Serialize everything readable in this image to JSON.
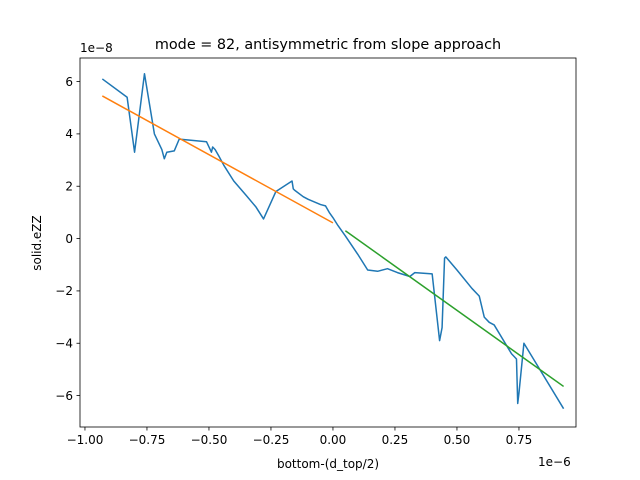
{
  "chart_data": {
    "type": "line",
    "title": "mode = 82, antisymmetric from slope approach",
    "xlabel": "bottom-(d_top/2)",
    "ylabel": "solid.eZZ",
    "x_offset_text": "1e−6",
    "y_offset_text": "1e−8",
    "xlim": [
      -1.02e-06,
      9.8e-07
    ],
    "ylim": [
      -7.2e-08,
      6.9e-08
    ],
    "x_ticks": [
      -1e-06,
      -7.5e-07,
      -5e-07,
      -2.5e-07,
      0.0,
      2.5e-07,
      5e-07,
      7.5e-07
    ],
    "x_tick_labels": [
      "−1.00",
      "−0.75",
      "−0.50",
      "−0.25",
      "0.00",
      "0.25",
      "0.50",
      "0.75"
    ],
    "y_ticks": [
      -6e-08,
      -4e-08,
      -2e-08,
      0,
      2e-08,
      4e-08,
      6e-08
    ],
    "y_tick_labels": [
      "−6",
      "−4",
      "−2",
      "0",
      "2",
      "4",
      "6"
    ],
    "series": [
      {
        "color": "#1f77b4",
        "x": [
          -9.3e-07,
          -8.3e-07,
          -8e-07,
          -7.6e-07,
          -7.2e-07,
          -6.9e-07,
          -6.8e-07,
          -6.7e-07,
          -6.4e-07,
          -6.2e-07,
          -5.1e-07,
          -4.9e-07,
          -4.85e-07,
          -4.75e-07,
          -4.6e-07,
          -4.4e-07,
          -4e-07,
          -3.5e-07,
          -3.1e-07,
          -2.8e-07,
          -2.3e-07,
          -1.65e-07,
          -1.6e-07,
          -1.55e-07,
          -1.2e-07,
          -1e-07,
          -5e-08,
          -3e-08,
          -1.5e-08,
          0.0,
          2e-08,
          5e-08,
          1e-07,
          1.4e-07,
          1.8e-07,
          2.2e-07,
          2.6e-07,
          3.1e-07,
          3.3e-07,
          4e-07,
          4.3e-07,
          4.4e-07,
          4.5e-07,
          4.55e-07,
          5e-07,
          5.6e-07,
          5.9e-07,
          6.1e-07,
          6.3e-07,
          6.5e-07,
          7.2e-07,
          7.4e-07,
          7.45e-07,
          7.5e-07,
          7.7e-07,
          9.3e-07
        ],
        "y": [
          6.1e-08,
          5.4e-08,
          3.3e-08,
          6.3e-08,
          4e-08,
          3.4e-08,
          3.05e-08,
          3.3e-08,
          3.35e-08,
          3.8e-08,
          3.7e-08,
          3.3e-08,
          3.5e-08,
          3.4e-08,
          3.15e-08,
          2.8e-08,
          2.2e-08,
          1.65e-08,
          1.2e-08,
          7.5e-09,
          1.8e-08,
          2.2e-08,
          1.9e-08,
          1.85e-08,
          1.6e-08,
          1.5e-08,
          1.3e-08,
          1.25e-08,
          1e-08,
          8e-09,
          5e-09,
          1e-09,
          -6e-09,
          -1.2e-08,
          -1.25e-08,
          -1.15e-08,
          -1.3e-08,
          -1.45e-08,
          -1.3e-08,
          -1.35e-08,
          -3.9e-08,
          -3.4e-08,
          -7.5e-09,
          -7e-09,
          -1.2e-08,
          -1.9e-08,
          -2.2e-08,
          -3e-08,
          -3.2e-08,
          -3.3e-08,
          -4.4e-08,
          -4.6e-08,
          -6.3e-08,
          -5.9e-08,
          -4e-08,
          -6.5e-08
        ]
      },
      {
        "color": "#ff7f0e",
        "x": [
          -9.3e-07,
          0.0
        ],
        "y": [
          5.45e-08,
          6e-09
        ]
      },
      {
        "color": "#2ca02c",
        "x": [
          5e-08,
          9.3e-07
        ],
        "y": [
          3e-09,
          -5.65e-08
        ]
      }
    ]
  }
}
